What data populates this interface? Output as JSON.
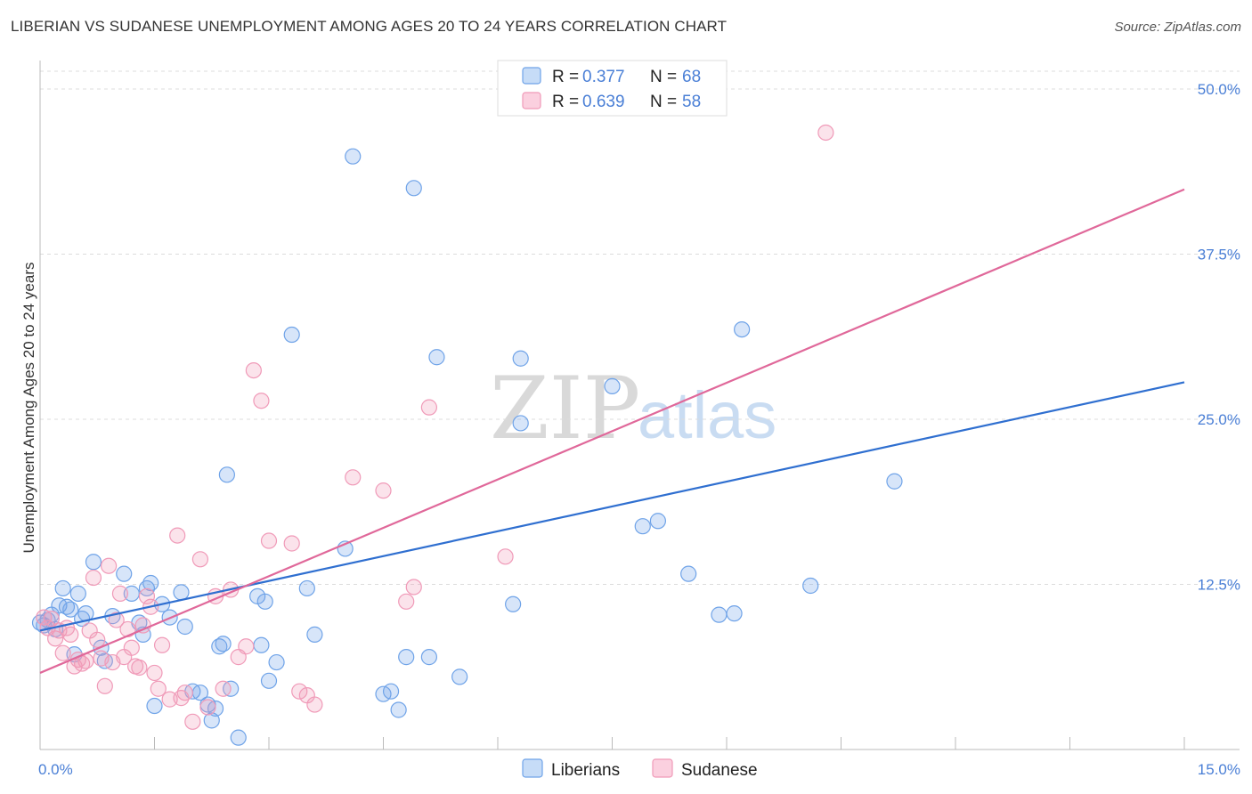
{
  "header": {
    "title": "LIBERIAN VS SUDANESE UNEMPLOYMENT AMONG AGES 20 TO 24 YEARS CORRELATION CHART",
    "source": "Source: ZipAtlas.com"
  },
  "watermark": {
    "zip": "ZIP",
    "atlas": "atlas"
  },
  "legend": {
    "items": [
      {
        "r_label": "R =",
        "r_value": "0.377",
        "n_label": "N =",
        "n_value": "68",
        "color": "#6fa3e8"
      },
      {
        "r_label": "R =",
        "r_value": "0.639",
        "n_label": "N =",
        "n_value": "58",
        "color": "#f09ab8"
      }
    ]
  },
  "bottom_legend": {
    "series1": "Liberians",
    "series2": "Sudanese"
  },
  "colors": {
    "liberians": "#6fa3e8",
    "sudanese": "#f09ab8",
    "liberians_line": "#2f6fd0",
    "sudanese_line": "#e0689a"
  },
  "chart_data": {
    "type": "scatter",
    "title": "LIBERIAN VS SUDANESE UNEMPLOYMENT AMONG AGES 20 TO 24 YEARS CORRELATION CHART",
    "xlabel": "",
    "ylabel": "Unemployment Among Ages 20 to 24 years",
    "xlim": [
      0,
      15
    ],
    "ylim": [
      0,
      50
    ],
    "x_tick_labels": [
      "0.0%",
      "15.0%"
    ],
    "y_ticks": [
      12.5,
      25.0,
      37.5,
      50.0
    ],
    "y_tick_labels": [
      "12.5%",
      "25.0%",
      "37.5%",
      "50.0%"
    ],
    "grid": "horizontal dashed",
    "legend_position": "top-center",
    "series": [
      {
        "name": "Liberians",
        "trend": {
          "x": [
            0,
            15
          ],
          "y": [
            9.0,
            27.8
          ]
        },
        "points": [
          [
            0.05,
            9.4
          ],
          [
            0.1,
            9.8
          ],
          [
            0.15,
            10.2
          ],
          [
            0.2,
            9.1
          ],
          [
            0.25,
            10.9
          ],
          [
            0.3,
            12.2
          ],
          [
            0.35,
            10.8
          ],
          [
            0.4,
            10.6
          ],
          [
            0.45,
            7.2
          ],
          [
            0.5,
            11.8
          ],
          [
            0.55,
            9.9
          ],
          [
            0.6,
            10.3
          ],
          [
            0.7,
            14.2
          ],
          [
            0.8,
            7.7
          ],
          [
            0.85,
            6.7
          ],
          [
            0.95,
            10.1
          ],
          [
            1.1,
            13.3
          ],
          [
            1.2,
            11.8
          ],
          [
            1.3,
            9.6
          ],
          [
            1.35,
            8.7
          ],
          [
            1.4,
            12.2
          ],
          [
            1.45,
            12.6
          ],
          [
            1.5,
            3.3
          ],
          [
            1.6,
            11.0
          ],
          [
            1.7,
            10.0
          ],
          [
            1.9,
            9.3
          ],
          [
            1.85,
            11.9
          ],
          [
            2.0,
            4.4
          ],
          [
            2.1,
            4.3
          ],
          [
            2.2,
            3.4
          ],
          [
            2.25,
            2.2
          ],
          [
            2.3,
            3.1
          ],
          [
            2.35,
            7.8
          ],
          [
            2.4,
            8.0
          ],
          [
            2.45,
            20.8
          ],
          [
            2.5,
            4.6
          ],
          [
            2.6,
            0.9
          ],
          [
            2.85,
            11.6
          ],
          [
            2.95,
            11.2
          ],
          [
            2.9,
            7.9
          ],
          [
            3.0,
            5.2
          ],
          [
            3.1,
            6.6
          ],
          [
            3.3,
            31.4
          ],
          [
            3.5,
            12.2
          ],
          [
            3.6,
            8.7
          ],
          [
            4.0,
            15.2
          ],
          [
            4.1,
            44.9
          ],
          [
            4.5,
            4.2
          ],
          [
            4.6,
            4.4
          ],
          [
            4.7,
            3.0
          ],
          [
            4.8,
            7.0
          ],
          [
            5.1,
            7.0
          ],
          [
            4.9,
            42.5
          ],
          [
            5.2,
            29.7
          ],
          [
            5.5,
            5.5
          ],
          [
            6.2,
            11.0
          ],
          [
            6.3,
            24.7
          ],
          [
            6.3,
            29.6
          ],
          [
            7.5,
            27.5
          ],
          [
            7.9,
            16.9
          ],
          [
            8.1,
            17.3
          ],
          [
            8.5,
            13.3
          ],
          [
            8.9,
            10.2
          ],
          [
            9.1,
            10.3
          ],
          [
            9.2,
            31.8
          ],
          [
            10.1,
            12.4
          ],
          [
            11.2,
            20.3
          ],
          [
            0.0,
            9.6
          ]
        ]
      },
      {
        "name": "Sudanese",
        "trend": {
          "x": [
            0,
            15
          ],
          "y": [
            5.8,
            42.4
          ]
        },
        "points": [
          [
            0.05,
            10.0
          ],
          [
            0.1,
            9.2
          ],
          [
            0.15,
            9.9
          ],
          [
            0.2,
            8.4
          ],
          [
            0.25,
            9.0
          ],
          [
            0.3,
            7.3
          ],
          [
            0.35,
            9.2
          ],
          [
            0.4,
            8.7
          ],
          [
            0.45,
            6.3
          ],
          [
            0.5,
            6.8
          ],
          [
            0.55,
            6.5
          ],
          [
            0.6,
            6.7
          ],
          [
            0.65,
            9.0
          ],
          [
            0.7,
            13.0
          ],
          [
            0.75,
            8.3
          ],
          [
            0.8,
            6.9
          ],
          [
            0.85,
            4.8
          ],
          [
            0.9,
            13.9
          ],
          [
            0.95,
            6.6
          ],
          [
            1.0,
            9.8
          ],
          [
            1.05,
            11.8
          ],
          [
            1.1,
            7.0
          ],
          [
            1.15,
            9.1
          ],
          [
            1.2,
            7.7
          ],
          [
            1.25,
            6.3
          ],
          [
            1.3,
            6.2
          ],
          [
            1.35,
            9.4
          ],
          [
            1.4,
            11.6
          ],
          [
            1.45,
            10.8
          ],
          [
            1.5,
            5.8
          ],
          [
            1.55,
            4.6
          ],
          [
            1.6,
            7.9
          ],
          [
            1.7,
            3.8
          ],
          [
            1.8,
            16.2
          ],
          [
            1.85,
            3.9
          ],
          [
            1.9,
            4.3
          ],
          [
            2.0,
            2.1
          ],
          [
            2.1,
            14.4
          ],
          [
            2.2,
            3.2
          ],
          [
            2.3,
            11.6
          ],
          [
            2.4,
            4.6
          ],
          [
            2.5,
            12.1
          ],
          [
            2.6,
            7.0
          ],
          [
            2.7,
            7.8
          ],
          [
            2.8,
            28.7
          ],
          [
            2.9,
            26.4
          ],
          [
            3.0,
            15.8
          ],
          [
            3.3,
            15.6
          ],
          [
            3.4,
            4.4
          ],
          [
            3.5,
            4.1
          ],
          [
            3.6,
            3.4
          ],
          [
            4.1,
            20.6
          ],
          [
            4.5,
            19.6
          ],
          [
            4.8,
            11.2
          ],
          [
            4.9,
            12.3
          ],
          [
            5.1,
            25.9
          ],
          [
            6.1,
            14.6
          ],
          [
            10.3,
            46.7
          ]
        ]
      }
    ]
  }
}
